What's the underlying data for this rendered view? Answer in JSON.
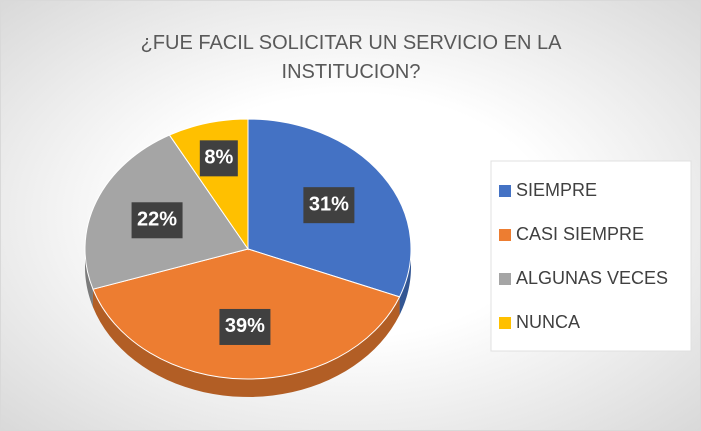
{
  "chart_data": {
    "type": "pie",
    "title": "¿FUE FACIL SOLICITAR UN SERVICIO EN LA INSTITUCION?",
    "categories": [
      "SIEMPRE",
      "CASI SIEMPRE",
      "ALGUNAS VECES",
      "NUNCA"
    ],
    "values": [
      31,
      39,
      22,
      8
    ],
    "value_labels": [
      "31%",
      "39%",
      "22%",
      "8%"
    ],
    "colors": [
      "#4472c4",
      "#ed7d31",
      "#a5a5a5",
      "#ffc000"
    ],
    "legend": "right"
  }
}
